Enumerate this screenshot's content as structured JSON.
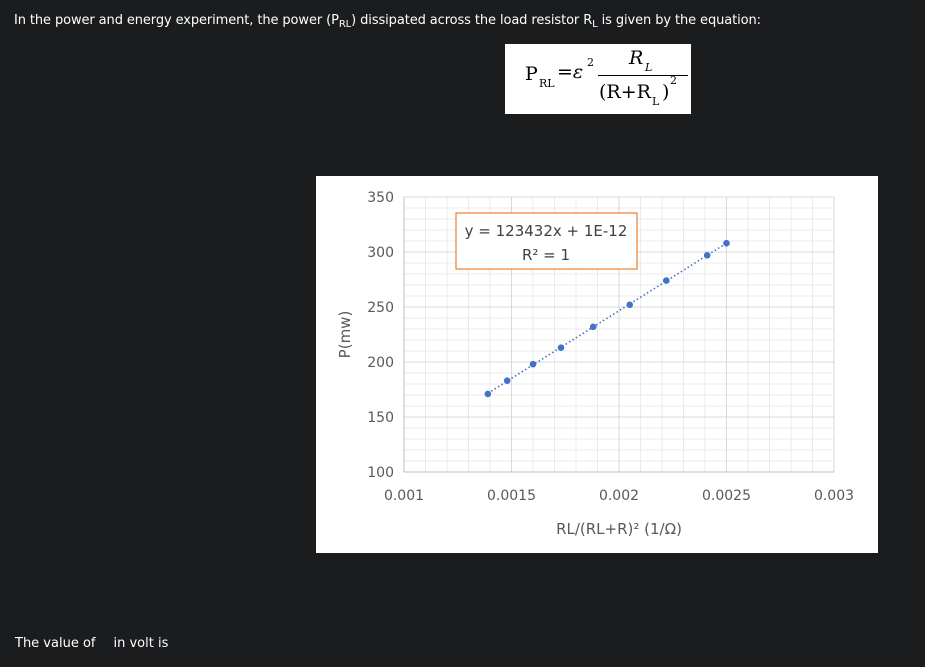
{
  "question": {
    "text_before_symbol": "In the power and energy experiment, the power (P",
    "symbol_sub": "RL",
    "text_mid": ") dissipated across the load resistor R",
    "resistor_sub": "L",
    "text_after": " is given by the equation:"
  },
  "formula": {
    "lhs_p": "P",
    "lhs_sub": "RL",
    "equals_eps": "=ε",
    "eps_exp": "2",
    "num_r": "R",
    "num_sub": "L",
    "den_open": "(R+R",
    "den_sub": "L",
    "den_close": ")",
    "den_exp": "2"
  },
  "chart_data": {
    "type": "scatter",
    "xlabel": "RL/(RL+R)² (1/Ω)",
    "ylabel": "P(mw)",
    "xlim": [
      0.001,
      0.003
    ],
    "ylim": [
      100,
      350
    ],
    "x_ticks": [
      "0.001",
      "0.0015",
      "0.002",
      "0.0025",
      "0.003"
    ],
    "y_ticks": [
      "350",
      "300",
      "250",
      "200",
      "150",
      "100"
    ],
    "grid": true,
    "points": [
      {
        "x": 0.00139,
        "y": 171
      },
      {
        "x": 0.00148,
        "y": 183
      },
      {
        "x": 0.0016,
        "y": 198
      },
      {
        "x": 0.00173,
        "y": 213
      },
      {
        "x": 0.00188,
        "y": 232
      },
      {
        "x": 0.00205,
        "y": 252
      },
      {
        "x": 0.00222,
        "y": 274
      },
      {
        "x": 0.00241,
        "y": 297
      },
      {
        "x": 0.0025,
        "y": 308
      }
    ],
    "trendline": {
      "style": "dotted",
      "color": "#4472c4"
    },
    "marker_color": "#4472c4",
    "equation_line1": "y = 123432x + 1E-12",
    "equation_line2": "R² = 1",
    "equation_border_color": "#ed7d31"
  },
  "footer": {
    "text_a": "The value of",
    "text_b": "in volt is"
  }
}
